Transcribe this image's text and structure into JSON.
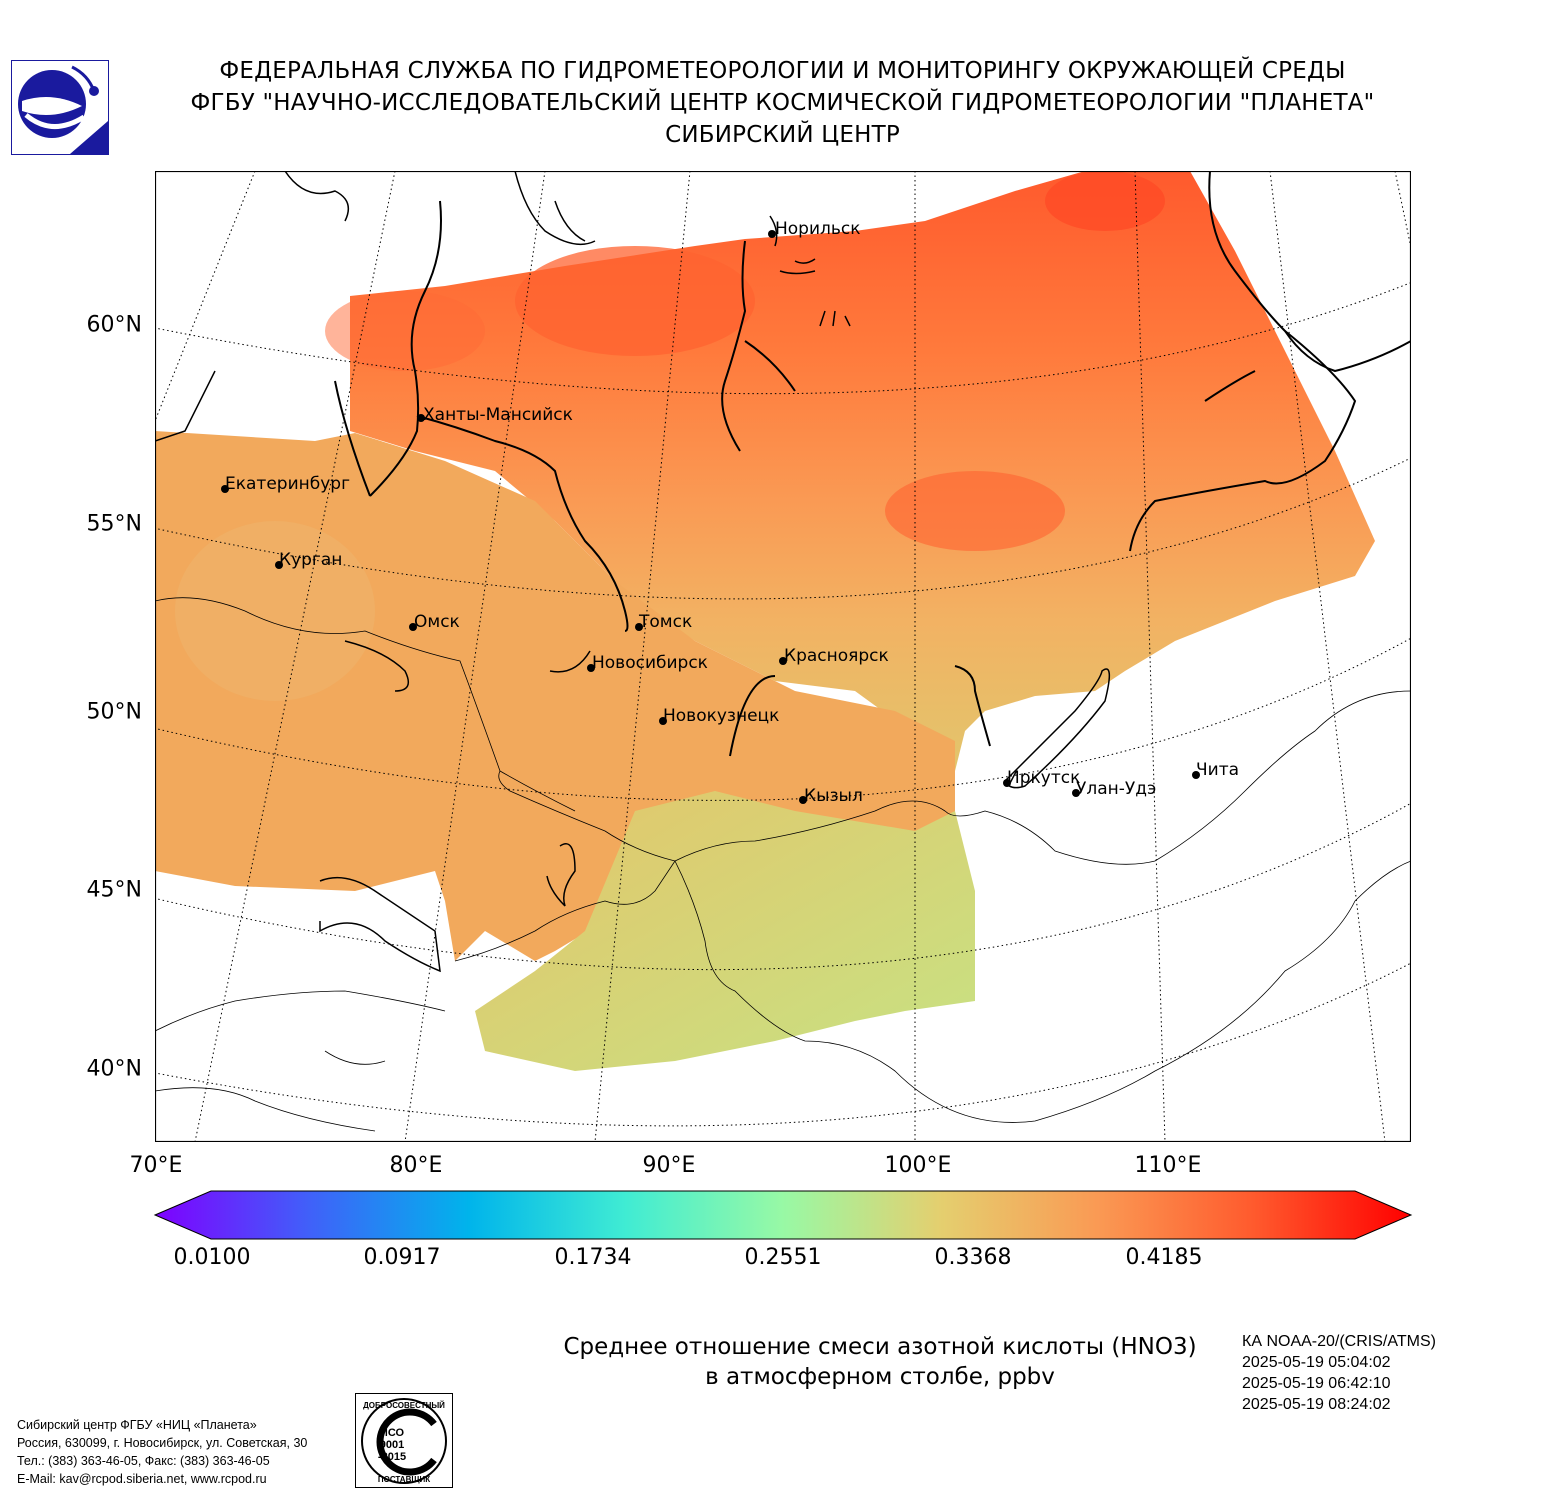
{
  "header": {
    "line1": "ФЕДЕРАЛЬНАЯ СЛУЖБА ПО ГИДРОМЕТЕОРОЛОГИИ И МОНИТОРИНГУ ОКРУЖАЮЩЕЙ СРЕДЫ",
    "line2": "ФГБУ \"НАУЧНО-ИССЛЕДОВАТЕЛЬСКИЙ ЦЕНТР КОСМИЧЕСКОЙ ГИДРОМЕТЕОРОЛОГИИ \"ПЛАНЕТА\"",
    "line3": "СИБИРСКИЙ ЦЕНТР"
  },
  "logo": {
    "icon": "roshydromet-logo-icon",
    "color": "#1a1a9e"
  },
  "map": {
    "lat_labels": [
      "60°N",
      "55°N",
      "50°N",
      "45°N",
      "40°N"
    ],
    "lon_labels": [
      "70°E",
      "80°E",
      "90°E",
      "100°E",
      "110°E"
    ],
    "cities": [
      {
        "name": "Норильск"
      },
      {
        "name": "Ханты-Мансийск"
      },
      {
        "name": "Екатеринбург"
      },
      {
        "name": "Курган"
      },
      {
        "name": "Омск"
      },
      {
        "name": "Томск"
      },
      {
        "name": "Новосибирск"
      },
      {
        "name": "Красноярск"
      },
      {
        "name": "Новокузнецк"
      },
      {
        "name": "Кызыл"
      },
      {
        "name": "Иркутск"
      },
      {
        "name": "Улан-Удэ"
      },
      {
        "name": "Чита"
      }
    ]
  },
  "colorbar": {
    "ticks": [
      "0.0100",
      "0.0917",
      "0.1734",
      "0.2551",
      "0.3368",
      "0.4185"
    ],
    "min": 0.01,
    "max": 0.5,
    "colors": [
      "#7f00ff",
      "#3f62f9",
      "#00b4eb",
      "#40ecd3",
      "#98f9a5",
      "#e4cf6f",
      "#fa9a54",
      "#ff5a2d",
      "#ff0000"
    ]
  },
  "caption": {
    "line1": "Среднее отношение смеси азотной кислоты (HNO3)",
    "line2": "в атмосферном столбе, ppbv"
  },
  "satellite": {
    "name": "КА NOAA-20/(CRIS/ATMS)",
    "times": [
      "2025-05-19 05:04:02",
      "2025-05-19 06:42:10",
      "2025-05-19 08:24:02"
    ]
  },
  "footer": {
    "lines": [
      "Сибирский центр ФГБУ «НИЦ «Планета»",
      "Россия, 630099, г. Новосибирск, ул. Советская, 30",
      "Тел.: (383) 363-46-05, Факс: (383) 363-46-05",
      "E-Mail: kav@rcpod.siberia.net, www.rcpod.ru"
    ]
  },
  "iso_stamp": {
    "top_text": "ДОБРОСОВЕСТНЫЙ",
    "line1": "ИСО",
    "line2": "9001",
    "line3": "-2015",
    "bottom_text": "ПОСТАВЩИК"
  }
}
